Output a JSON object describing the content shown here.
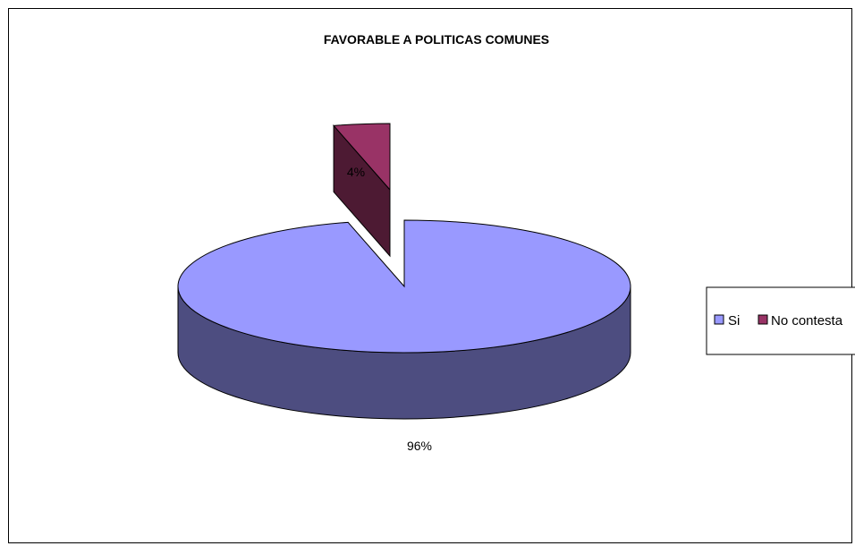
{
  "colors": {
    "Si": "#9999ff",
    "Si_side": "#4d4d80",
    "No contesta": "#993366",
    "No contesta_side": "#4d1a33",
    "outline": "#000000"
  },
  "chart_data": {
    "type": "pie",
    "style": "3d-exploded",
    "title": "FAVORABLE A POLITICAS COMUNES",
    "categories": [
      "Si",
      "No contesta"
    ],
    "values": [
      96,
      4
    ],
    "data_labels": [
      "96%",
      "4%"
    ],
    "legend": {
      "position": "right",
      "entries": [
        "Si",
        "No contesta"
      ]
    }
  }
}
